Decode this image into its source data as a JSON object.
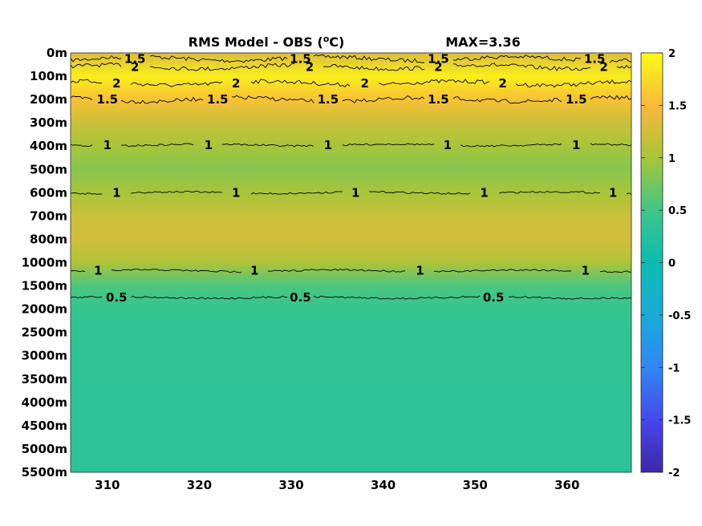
{
  "chart_data": {
    "type": "heatmap",
    "title": "RMS Model - OBS (",
    "title_unit_sup": "o",
    "title_unit_suffix": "C)",
    "max_label": "MAX=3.36",
    "x_ticks": [
      310,
      320,
      330,
      340,
      350,
      360
    ],
    "x_range": [
      306,
      367
    ],
    "y_ticks": [
      "0m",
      "100m",
      "200m",
      "300m",
      "400m",
      "500m",
      "600m",
      "700m",
      "800m",
      "1000m",
      "1500m",
      "2000m",
      "2500m",
      "3000m",
      "3500m",
      "4000m",
      "4500m",
      "5000m",
      "5500m"
    ],
    "colorbar": {
      "range": [
        -2,
        2
      ],
      "ticks": [
        "2",
        "1.5",
        "1",
        "0.5",
        "0",
        "-0.5",
        "-1",
        "-1.5",
        "-2"
      ]
    },
    "depth_profile": [
      1.3,
      1.9,
      1.55,
      1.2,
      1.0,
      0.85,
      1.0,
      1.2,
      1.25,
      1.05,
      0.55,
      0.4,
      0.35,
      0.35,
      0.35,
      0.33,
      0.33,
      0.33,
      0.33
    ],
    "contours": [
      {
        "level": "1.5",
        "depth": 0.25,
        "labels": [
          313,
          331,
          346,
          363
        ]
      },
      {
        "level": "2",
        "depth": 0.6,
        "labels": [
          313,
          332,
          346,
          364
        ]
      },
      {
        "level": "2",
        "depth": 1.3,
        "labels": [
          311,
          324,
          338,
          353
        ]
      },
      {
        "level": "1.5",
        "depth": 2.0,
        "labels": [
          310,
          322,
          334,
          346,
          361
        ]
      },
      {
        "level": "1",
        "depth": 3.95,
        "labels": [
          310,
          321,
          334,
          347,
          361
        ]
      },
      {
        "level": "1",
        "depth": 6.0,
        "labels": [
          311,
          324,
          337,
          351,
          365
        ]
      },
      {
        "level": "1",
        "depth": 9.35,
        "labels": [
          309,
          326,
          344,
          362
        ]
      },
      {
        "level": "0.5",
        "depth": 10.5,
        "labels": [
          311,
          331,
          352
        ]
      }
    ]
  }
}
